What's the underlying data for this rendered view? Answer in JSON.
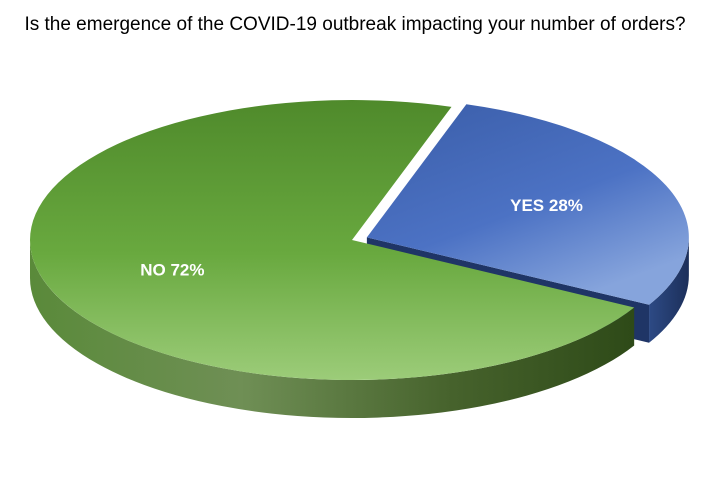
{
  "chart_data": {
    "type": "pie",
    "title": "Is the emergence of the COVID-19 outbreak impacting your number of orders?",
    "categories": [
      "YES",
      "NO"
    ],
    "values": [
      28,
      72
    ],
    "labels": [
      "YES 28%",
      "NO 72%"
    ],
    "colors": [
      "#4a6fc0",
      "#67a63f"
    ],
    "three_d": true,
    "exploded": "YES",
    "legend": "none"
  }
}
